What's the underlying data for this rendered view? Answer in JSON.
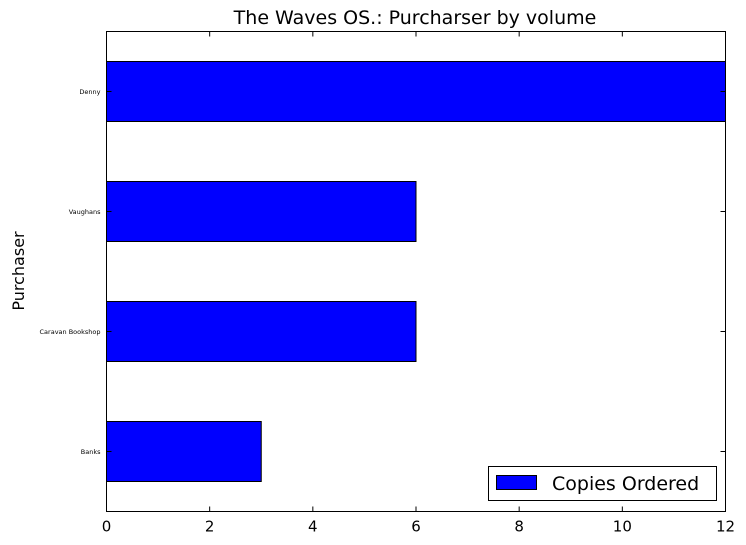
{
  "chart_data": {
    "type": "bar",
    "orientation": "horizontal",
    "title": "The Waves OS.: Purcharser by volume",
    "xlabel": "",
    "ylabel": "Purchaser",
    "categories": [
      "Banks",
      "Caravan Bookshop",
      "Vaughans",
      "Denny"
    ],
    "series": [
      {
        "name": "Copies Ordered",
        "values": [
          3,
          6,
          6,
          12
        ],
        "color": "#0000ff"
      }
    ],
    "xlim": [
      0,
      12
    ],
    "xticks": [
      "0",
      "2",
      "4",
      "6",
      "8",
      "10",
      "12"
    ],
    "grid": false,
    "legend_position": "lower-right"
  }
}
